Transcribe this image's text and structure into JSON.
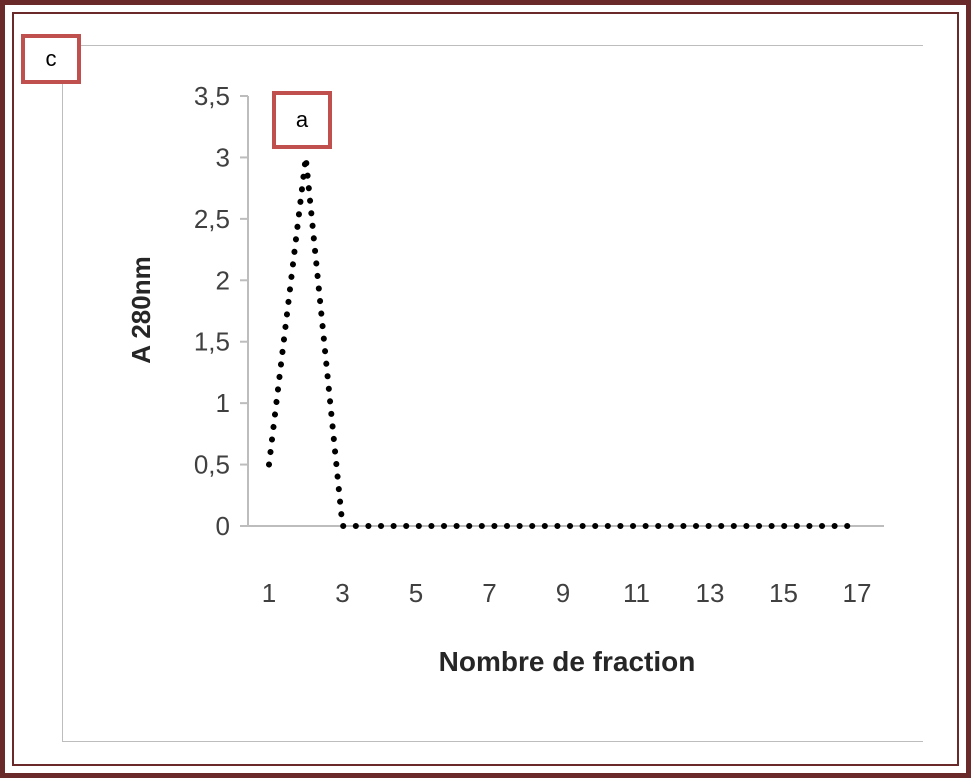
{
  "labels": {
    "panel": "c",
    "peak": "a"
  },
  "chart_data": {
    "type": "line",
    "title": "",
    "xlabel": "Nombre de fraction",
    "ylabel": "A 280nm",
    "xlim": [
      1,
      17
    ],
    "ylim": [
      0,
      3.5
    ],
    "x_ticks": [
      "1",
      "3",
      "5",
      "7",
      "9",
      "11",
      "13",
      "15",
      "17"
    ],
    "y_ticks": [
      "0",
      "0,5",
      "1",
      "1,5",
      "2",
      "2,5",
      "3",
      "3,5"
    ],
    "grid": false,
    "line_style": "dotted",
    "series": [
      {
        "x": [
          1,
          2,
          3,
          4,
          5,
          6,
          7,
          8,
          9,
          10,
          11,
          12,
          13,
          14,
          15,
          16,
          17
        ],
        "y": [
          0.5,
          3.0,
          0.0,
          0.0,
          0.0,
          0.0,
          0.0,
          0.0,
          0.0,
          0.0,
          0.0,
          0.0,
          0.0,
          0.0,
          0.0,
          0.0,
          0.0
        ]
      }
    ],
    "colors": {
      "line": "#000000",
      "axis": "#bdbdbd",
      "frame": "#6b2a2a",
      "tag_border": "#c0504d"
    }
  }
}
